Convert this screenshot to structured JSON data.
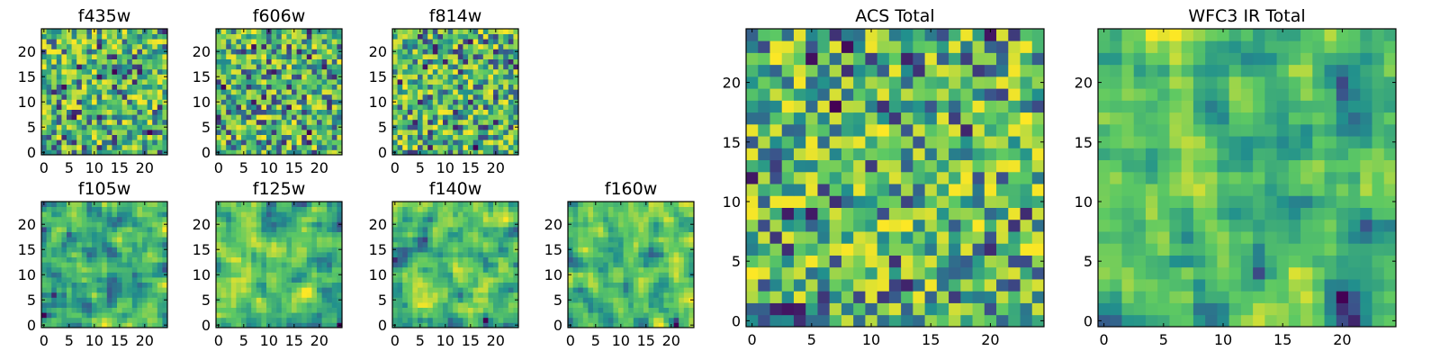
{
  "figure": {
    "background": "#ffffff"
  },
  "colormap": [
    "#440154",
    "#3b528b",
    "#21908d",
    "#5dc963",
    "#fde725"
  ],
  "chart_data": [
    {
      "type": "heatmap",
      "title": "f435w",
      "xticks": [
        0,
        5,
        10,
        15,
        20
      ],
      "yticks": [
        0,
        5,
        10,
        15,
        20
      ],
      "xlim": [
        0,
        24
      ],
      "ylim": [
        0,
        24
      ],
      "grid": false,
      "legend": "none",
      "seed": 11
    },
    {
      "type": "heatmap",
      "title": "f606w",
      "xticks": [
        0,
        5,
        10,
        15,
        20
      ],
      "yticks": [
        0,
        5,
        10,
        15,
        20
      ],
      "xlim": [
        0,
        24
      ],
      "ylim": [
        0,
        24
      ],
      "grid": false,
      "legend": "none",
      "seed": 23
    },
    {
      "type": "heatmap",
      "title": "f814w",
      "xticks": [
        0,
        5,
        10,
        15,
        20
      ],
      "yticks": [
        0,
        5,
        10,
        15,
        20
      ],
      "xlim": [
        0,
        24
      ],
      "ylim": [
        0,
        24
      ],
      "grid": false,
      "legend": "none",
      "seed": 37
    },
    {
      "type": "heatmap",
      "title": "f105w",
      "xticks": [
        0,
        5,
        10,
        15,
        20
      ],
      "yticks": [
        0,
        5,
        10,
        15,
        20
      ],
      "xlim": [
        0,
        24
      ],
      "ylim": [
        0,
        24
      ],
      "grid": false,
      "legend": "none",
      "seed": 41
    },
    {
      "type": "heatmap",
      "title": "f125w",
      "xticks": [
        0,
        5,
        10,
        15,
        20
      ],
      "yticks": [
        0,
        5,
        10,
        15,
        20
      ],
      "xlim": [
        0,
        24
      ],
      "ylim": [
        0,
        24
      ],
      "grid": false,
      "legend": "none",
      "seed": 53
    },
    {
      "type": "heatmap",
      "title": "f140w",
      "xticks": [
        0,
        5,
        10,
        15,
        20
      ],
      "yticks": [
        0,
        5,
        10,
        15,
        20
      ],
      "xlim": [
        0,
        24
      ],
      "ylim": [
        0,
        24
      ],
      "grid": false,
      "legend": "none",
      "seed": 67
    },
    {
      "type": "heatmap",
      "title": "f160w",
      "xticks": [
        0,
        5,
        10,
        15,
        20
      ],
      "yticks": [
        0,
        5,
        10,
        15,
        20
      ],
      "xlim": [
        0,
        24
      ],
      "ylim": [
        0,
        24
      ],
      "grid": false,
      "legend": "none",
      "seed": 79
    },
    {
      "type": "heatmap",
      "title": "ACS Total",
      "xticks": [
        0,
        5,
        10,
        15,
        20
      ],
      "yticks": [
        0,
        5,
        10,
        15,
        20
      ],
      "xlim": [
        0,
        24
      ],
      "ylim": [
        0,
        24
      ],
      "grid": false,
      "legend": "none",
      "seed": 97
    },
    {
      "type": "heatmap",
      "title": "WFC3 IR Total",
      "xticks": [
        0,
        5,
        10,
        15,
        20
      ],
      "yticks": [
        0,
        5,
        10,
        15,
        20
      ],
      "xlim": [
        0,
        24
      ],
      "ylim": [
        0,
        24
      ],
      "grid": false,
      "legend": "none",
      "seed": 131
    }
  ]
}
